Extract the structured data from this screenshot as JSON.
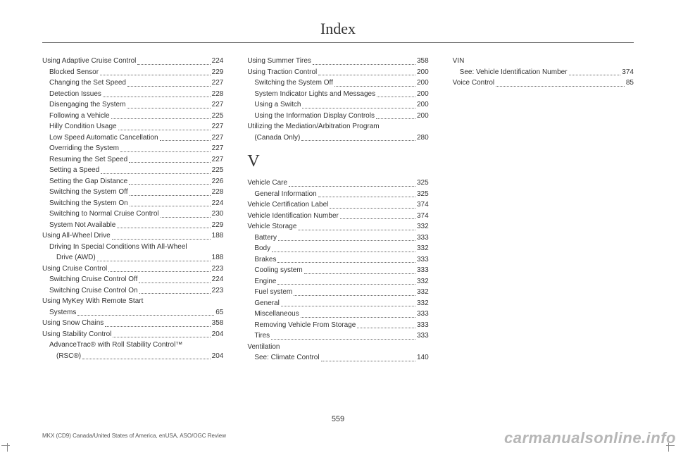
{
  "title": "Index",
  "page_number": "559",
  "footnote": "MKX (CD9) Canada/United States of America, enUSA, ASO/OGC Review",
  "watermark": "carmanualsonline.info",
  "columns": [
    {
      "items": [
        {
          "t": "entry",
          "label": "Using Adaptive Cruise Control",
          "page": "224"
        },
        {
          "t": "sub",
          "label": "Blocked Sensor",
          "page": "229"
        },
        {
          "t": "sub",
          "label": "Changing the Set Speed",
          "page": "227"
        },
        {
          "t": "sub",
          "label": "Detection Issues",
          "page": "228"
        },
        {
          "t": "sub",
          "label": "Disengaging the System",
          "page": "227"
        },
        {
          "t": "sub",
          "label": "Following a Vehicle",
          "page": "225"
        },
        {
          "t": "sub",
          "label": "Hilly Condition Usage",
          "page": "227"
        },
        {
          "t": "sub",
          "label": "Low Speed Automatic Cancellation",
          "page": "227"
        },
        {
          "t": "sub",
          "label": "Overriding the System",
          "page": "227"
        },
        {
          "t": "sub",
          "label": "Resuming the Set Speed",
          "page": "227"
        },
        {
          "t": "sub",
          "label": "Setting a Speed",
          "page": "225"
        },
        {
          "t": "sub",
          "label": "Setting the Gap Distance",
          "page": "226"
        },
        {
          "t": "sub",
          "label": "Switching the System Off",
          "page": "228"
        },
        {
          "t": "sub",
          "label": "Switching the System On",
          "page": "224"
        },
        {
          "t": "sub",
          "label": "Switching to Normal Cruise Control",
          "page": "230"
        },
        {
          "t": "sub",
          "label": "System Not Available",
          "page": "229"
        },
        {
          "t": "entry",
          "label": "Using All-Wheel Drive",
          "page": "188"
        },
        {
          "t": "sub-nobreak",
          "label": "Driving In Special Conditions With All-Wheel"
        },
        {
          "t": "sub2",
          "label": "Drive (AWD)",
          "page": "188"
        },
        {
          "t": "entry",
          "label": "Using Cruise Control",
          "page": "223"
        },
        {
          "t": "sub",
          "label": "Switching Cruise Control Off",
          "page": "224"
        },
        {
          "t": "sub",
          "label": "Switching Cruise Control On",
          "page": "223"
        },
        {
          "t": "entry-nobreak",
          "label": "Using MyKey With Remote Start"
        },
        {
          "t": "cont",
          "label": "Systems",
          "page": "65"
        },
        {
          "t": "entry",
          "label": "Using Snow Chains",
          "page": "358"
        },
        {
          "t": "entry",
          "label": "Using Stability Control",
          "page": "204"
        },
        {
          "t": "sub-nobreak",
          "label": "AdvanceTrac® with Roll Stability Control™"
        },
        {
          "t": "sub2",
          "label": "(RSC®)",
          "page": "204"
        }
      ]
    },
    {
      "items": [
        {
          "t": "entry",
          "label": "Using Summer Tires",
          "page": "358"
        },
        {
          "t": "entry",
          "label": "Using Traction Control",
          "page": "200"
        },
        {
          "t": "sub",
          "label": "Switching the System Off",
          "page": "200"
        },
        {
          "t": "sub",
          "label": "System Indicator Lights and Messages",
          "page": "200"
        },
        {
          "t": "sub",
          "label": "Using a Switch",
          "page": "200"
        },
        {
          "t": "sub",
          "label": "Using the Information Display Controls",
          "page": "200"
        },
        {
          "t": "entry-nobreak",
          "label": "Utilizing the Mediation/Arbitration Program"
        },
        {
          "t": "cont",
          "label": "(Canada Only)",
          "page": "280"
        },
        {
          "t": "letter",
          "label": "V"
        },
        {
          "t": "entry",
          "label": "Vehicle Care",
          "page": "325"
        },
        {
          "t": "sub",
          "label": "General Information",
          "page": "325"
        },
        {
          "t": "entry",
          "label": "Vehicle Certification Label",
          "page": "374"
        },
        {
          "t": "entry",
          "label": "Vehicle Identification Number",
          "page": "374"
        },
        {
          "t": "entry",
          "label": "Vehicle Storage",
          "page": "332"
        },
        {
          "t": "sub",
          "label": "Battery",
          "page": "333"
        },
        {
          "t": "sub",
          "label": "Body",
          "page": "332"
        },
        {
          "t": "sub",
          "label": "Brakes",
          "page": "333"
        },
        {
          "t": "sub",
          "label": "Cooling system",
          "page": "333"
        },
        {
          "t": "sub",
          "label": "Engine",
          "page": "332"
        },
        {
          "t": "sub",
          "label": "Fuel system",
          "page": "332"
        },
        {
          "t": "sub",
          "label": "General",
          "page": "332"
        },
        {
          "t": "sub",
          "label": "Miscellaneous",
          "page": "333"
        },
        {
          "t": "sub",
          "label": "Removing Vehicle From Storage",
          "page": "333"
        },
        {
          "t": "sub",
          "label": "Tires",
          "page": "333"
        },
        {
          "t": "entry-nobreak",
          "label": "Ventilation"
        },
        {
          "t": "sub",
          "label": "See: Climate Control",
          "page": "140"
        }
      ]
    },
    {
      "items": [
        {
          "t": "entry-nobreak",
          "label": "VIN"
        },
        {
          "t": "sub",
          "label": "See: Vehicle Identification Number",
          "page": "374"
        },
        {
          "t": "entry",
          "label": "Voice Control",
          "page": "85"
        }
      ]
    }
  ]
}
